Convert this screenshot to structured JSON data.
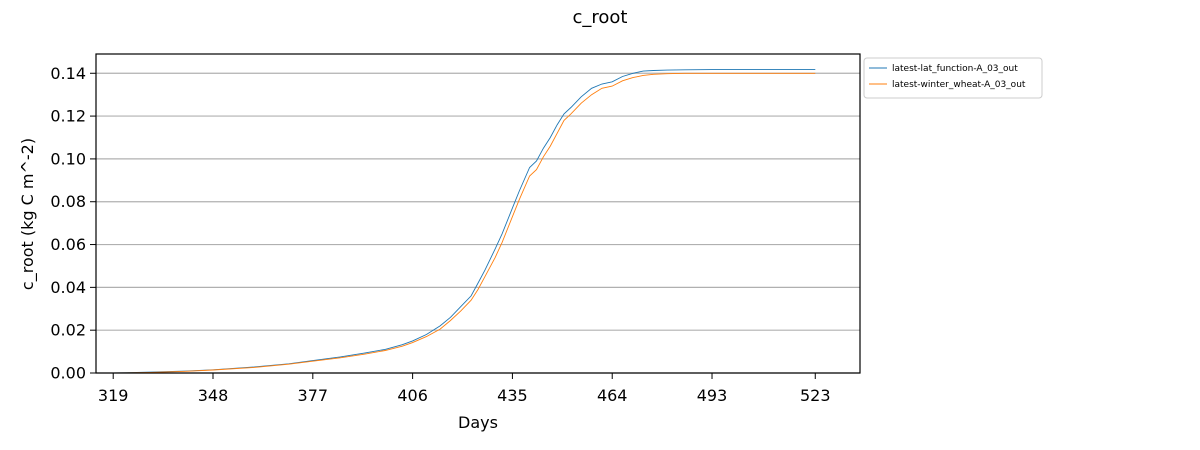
{
  "chart_data": {
    "type": "line",
    "title": "c_root",
    "xlabel": "Days",
    "ylabel": "c_root (kg C m^-2)",
    "xlim": [
      314,
      536
    ],
    "ylim": [
      0,
      0.149
    ],
    "xticks": [
      319,
      348,
      377,
      406,
      435,
      464,
      493,
      523
    ],
    "yticks": [
      0.0,
      0.02,
      0.04,
      0.06,
      0.08,
      0.1,
      0.12,
      0.14
    ],
    "ytick_labels": [
      "0.00",
      "0.02",
      "0.04",
      "0.06",
      "0.08",
      "0.10",
      "0.12",
      "0.14"
    ],
    "grid": "horizontal",
    "legend_position": "outside-top-right",
    "series": [
      {
        "name": "latest-lat_function-A_03_out",
        "color": "#1f77b4",
        "x": [
          319,
          330,
          340,
          348,
          360,
          370,
          377,
          385,
          392,
          398,
          403,
          406,
          410,
          414,
          417,
          420,
          423,
          425,
          427,
          430,
          432,
          435,
          437,
          440,
          442,
          444,
          446,
          448,
          450,
          452,
          455,
          458,
          461,
          464,
          467,
          470,
          473,
          476,
          480,
          485,
          493,
          500,
          510,
          523
        ],
        "y": [
          0.0,
          0.0004,
          0.0009,
          0.0015,
          0.0028,
          0.0043,
          0.0058,
          0.0075,
          0.0093,
          0.011,
          0.0132,
          0.015,
          0.018,
          0.022,
          0.026,
          0.031,
          0.036,
          0.042,
          0.048,
          0.058,
          0.065,
          0.077,
          0.085,
          0.096,
          0.099,
          0.105,
          0.11,
          0.116,
          0.121,
          0.124,
          0.129,
          0.133,
          0.135,
          0.136,
          0.1385,
          0.14,
          0.141,
          0.1413,
          0.1415,
          0.1416,
          0.1417,
          0.1417,
          0.1417,
          0.1417
        ]
      },
      {
        "name": "latest-winter_wheat-A_03_out",
        "color": "#ff7f0e",
        "x": [
          319,
          330,
          340,
          348,
          360,
          370,
          377,
          385,
          392,
          398,
          403,
          406,
          410,
          414,
          417,
          420,
          423,
          425,
          427,
          430,
          432,
          435,
          437,
          440,
          442,
          444,
          446,
          448,
          450,
          452,
          455,
          458,
          461,
          464,
          467,
          470,
          473,
          476,
          480,
          485,
          493,
          500,
          510,
          523
        ],
        "y": [
          0.0,
          0.0003,
          0.0008,
          0.0014,
          0.0026,
          0.0041,
          0.0055,
          0.0071,
          0.0088,
          0.0105,
          0.0125,
          0.0142,
          0.017,
          0.0205,
          0.0245,
          0.029,
          0.034,
          0.039,
          0.045,
          0.054,
          0.061,
          0.073,
          0.081,
          0.092,
          0.095,
          0.101,
          0.106,
          0.112,
          0.118,
          0.121,
          0.126,
          0.13,
          0.133,
          0.134,
          0.1365,
          0.138,
          0.139,
          0.1395,
          0.1398,
          0.14,
          0.14,
          0.14,
          0.14,
          0.14
        ]
      }
    ]
  }
}
